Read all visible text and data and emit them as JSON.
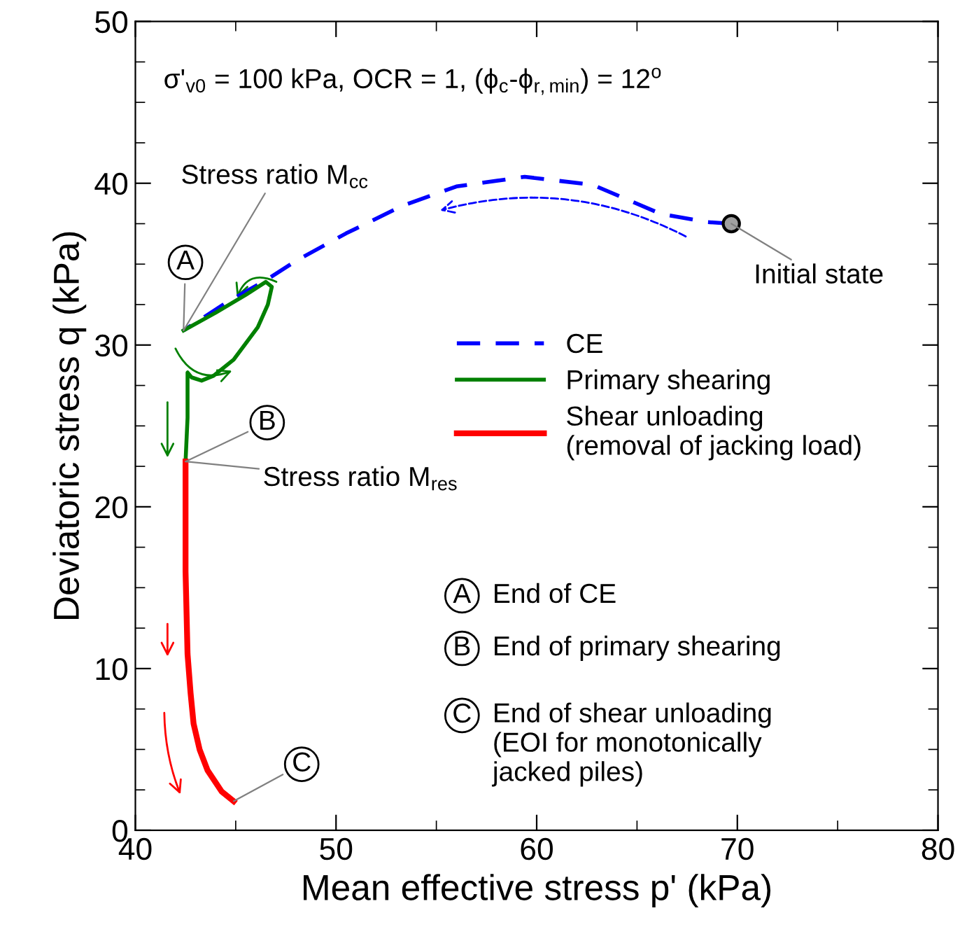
{
  "chart_data": {
    "type": "line",
    "xlabel": "Mean effective stress p' (kPa)",
    "ylabel": "Deviatoric stress q (kPa)",
    "xlim": [
      40,
      80
    ],
    "xticks": [
      40,
      50,
      60,
      70,
      80
    ],
    "ylim": [
      0,
      50
    ],
    "yticks": [
      0,
      10,
      20,
      30,
      40,
      50
    ],
    "grid": false,
    "legend": "right",
    "series": [
      {
        "name": "CE",
        "color": "#0000ff",
        "line_style": "dashed",
        "x": [
          69.7,
          68.5,
          66.2,
          62.8,
          59.4,
          56.0,
          53.3,
          50.5,
          48.0,
          46.5,
          44.5,
          42.4
        ],
        "values": [
          37.5,
          37.6,
          38.1,
          39.9,
          40.4,
          39.8,
          38.6,
          36.9,
          35.2,
          34.0,
          32.6,
          30.9
        ]
      },
      {
        "name": "Primary shearing",
        "color": "#008000",
        "line_style": "solid",
        "x": [
          42.4,
          44.0,
          45.5,
          46.5,
          46.8,
          46.6,
          46.1,
          44.9,
          43.9,
          43.3,
          42.8,
          42.6,
          42.6,
          42.5
        ],
        "values": [
          30.9,
          32.0,
          33.1,
          33.9,
          33.6,
          32.5,
          31.1,
          29.1,
          28.1,
          27.8,
          28.0,
          28.3,
          25.5,
          22.8
        ]
      },
      {
        "name": "Shear unloading\n(removal of jacking load)",
        "color": "#ff0000",
        "line_style": "solid",
        "x": [
          42.5,
          42.5,
          42.6,
          42.75,
          42.9,
          43.2,
          43.6,
          44.3,
          44.9
        ],
        "values": [
          22.8,
          16.0,
          10.9,
          8.5,
          6.6,
          5.0,
          3.7,
          2.4,
          1.8
        ]
      },
      {
        "type": "scatter",
        "color": "#a0a0a0",
        "marker": "circle",
        "x": [
          69.7
        ],
        "values": [
          37.5
        ]
      }
    ],
    "annotations": [
      "σ'$_{v0}$ = 100 kPa, OCR = 1, (ϕ$_{c}$-ϕ$_{r,min}$) = 12$^{o}$",
      {
        "text": "Stress ratio M$_{cc}$",
        "x": 42.4,
        "y": 30.9
      },
      {
        "text": "A",
        "x": 42.4,
        "y": 30.9
      },
      {
        "text": "B",
        "x": 42.5,
        "y": 22.8
      },
      {
        "text": "Stress ratio M$_{res}$",
        "x": 42.5,
        "y": 22.8
      },
      {
        "text": "C",
        "x": 44.9,
        "y": 1.8
      },
      {
        "text": "Initial state",
        "x": 69.7,
        "y": 37.5
      },
      "A",
      "End of CE",
      "B",
      "End of primary shearing",
      "C",
      "End of shear unloading\n(EOI for monotonically\njacked piles)"
    ]
  }
}
